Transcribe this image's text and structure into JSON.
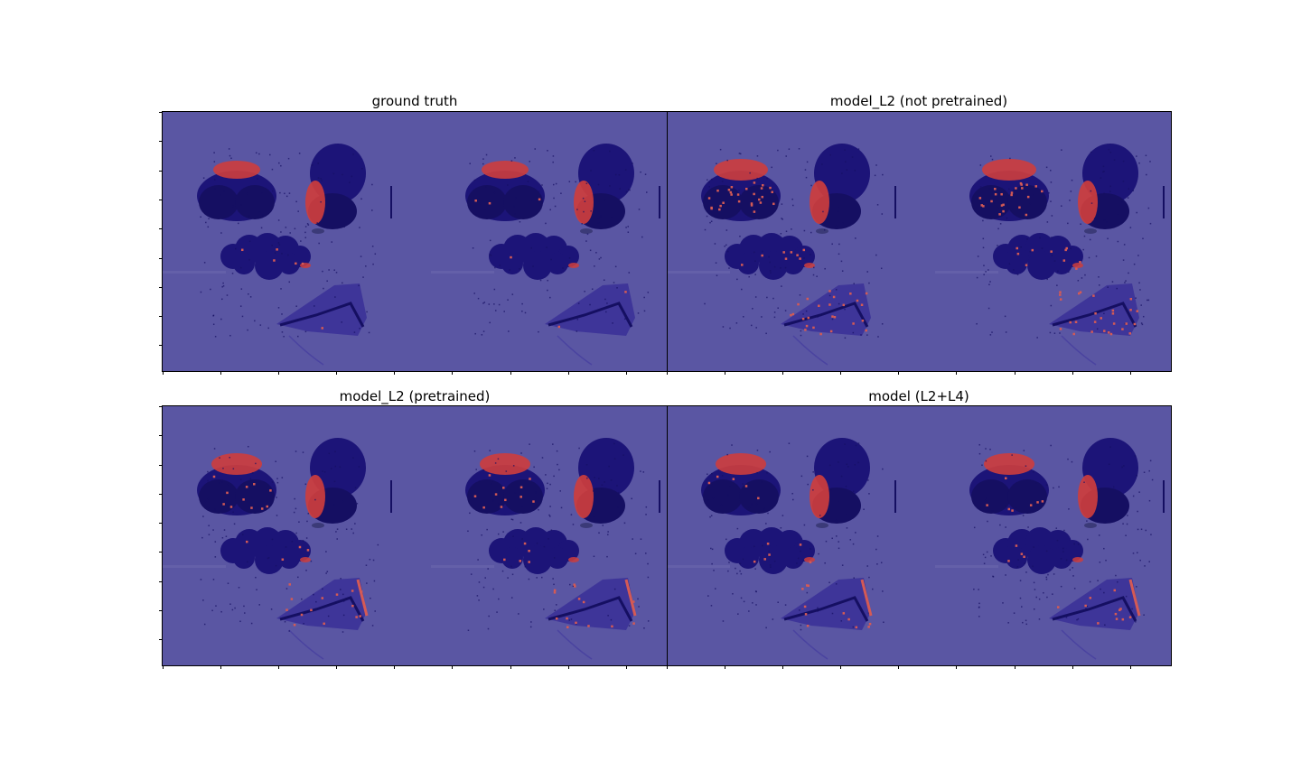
{
  "figure": {
    "titles": {
      "top_left": "ground truth",
      "top_right": "model_L2 (not pretrained)",
      "bottom_left": "model_L2 (pretrained)",
      "bottom_right": "model (L2+L4)"
    }
  },
  "colors": {
    "background_overlay": "#5a56a3",
    "tissue": "#1c1478",
    "tissue_dark": "#150f62",
    "prediction": "#cd3d3d",
    "prediction_light": "#d45a55"
  }
}
